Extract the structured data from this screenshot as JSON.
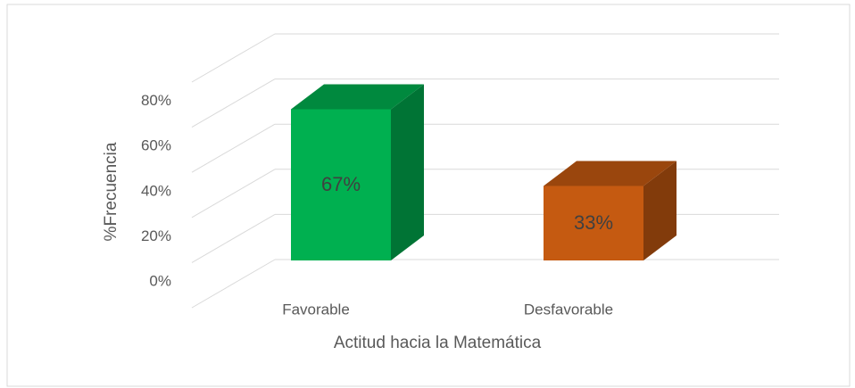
{
  "chart_data": {
    "type": "bar3d",
    "categories": [
      "Favorable",
      "Desfavorable"
    ],
    "values": [
      67,
      33
    ],
    "value_labels": [
      "67%",
      "33%"
    ],
    "colors": [
      "#00b050",
      "#c55a11"
    ],
    "ylim": [
      0,
      100
    ],
    "yticks": [
      {
        "value": 0,
        "label": "0%"
      },
      {
        "value": 20,
        "label": "20%"
      },
      {
        "value": 40,
        "label": "40%"
      },
      {
        "value": 60,
        "label": "60%"
      },
      {
        "value": 80,
        "label": "80%"
      }
    ],
    "xlabel": "Actitud hacia la Matemática",
    "ylabel": "%Frecuencia",
    "grid": true
  }
}
